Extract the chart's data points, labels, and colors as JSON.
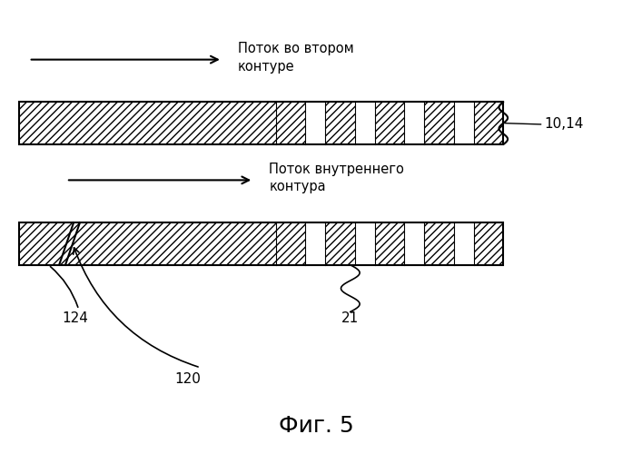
{
  "fig_width": 6.96,
  "fig_height": 5.0,
  "dpi": 100,
  "bg_color": "#ffffff",
  "arrow1_label": "Поток во втором\nконтуре",
  "arrow2_label": "Поток внутреннего\nконтура",
  "label_1014": "10,14",
  "label_124": "124",
  "label_21": "21",
  "label_120": "120",
  "fig_label": "Фиг. 5"
}
